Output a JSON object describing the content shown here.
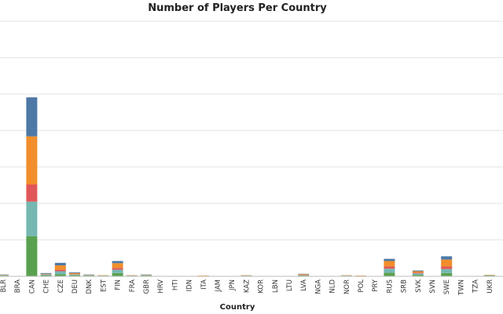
{
  "chart_data": {
    "type": "bar",
    "stacked": true,
    "title": "Number of Players Per Country",
    "xlabel": "Country",
    "ylabel": "",
    "grid": true,
    "ylim": [
      0,
      700
    ],
    "categories": [
      "BLR",
      "BRA",
      "CAN",
      "CHE",
      "CZE",
      "DEU",
      "DNK",
      "EST",
      "FIN",
      "FRA",
      "GBR",
      "HRV",
      "HTI",
      "IDN",
      "ITA",
      "JAM",
      "JPN",
      "KAZ",
      "KOR",
      "LBN",
      "LTU",
      "LVA",
      "NGA",
      "NLD",
      "NOR",
      "POL",
      "PRY",
      "RUS",
      "SRB",
      "SVK",
      "SVN",
      "SWE",
      "TWN",
      "TZA",
      "UKR"
    ],
    "series": [
      {
        "color": "#59a14f",
        "values": [
          2,
          0,
          110,
          3,
          6,
          3,
          2,
          1,
          9,
          1,
          2,
          0,
          0,
          0,
          1,
          0,
          0,
          1,
          0,
          0,
          0,
          2,
          0,
          0,
          1,
          1,
          0,
          10,
          0,
          4,
          0,
          9,
          0,
          0,
          2
        ]
      },
      {
        "color": "#76b7b2",
        "values": [
          1,
          0,
          95,
          2,
          8,
          2,
          1,
          1,
          9,
          1,
          1,
          0,
          0,
          0,
          0,
          0,
          0,
          1,
          0,
          0,
          1,
          1,
          0,
          0,
          1,
          0,
          0,
          11,
          0,
          4,
          0,
          11,
          0,
          0,
          1
        ]
      },
      {
        "color": "#e15759",
        "values": [
          0,
          0,
          47,
          1,
          4,
          1,
          0,
          0,
          5,
          0,
          0,
          0,
          0,
          0,
          0,
          0,
          0,
          0,
          0,
          0,
          0,
          1,
          0,
          0,
          0,
          0,
          0,
          6,
          0,
          2,
          0,
          7,
          0,
          0,
          0
        ]
      },
      {
        "color": "#f28e2b",
        "values": [
          1,
          1,
          132,
          1,
          12,
          3,
          1,
          1,
          13,
          1,
          1,
          0,
          0,
          0,
          1,
          0,
          0,
          1,
          0,
          0,
          0,
          2,
          0,
          0,
          1,
          1,
          0,
          15,
          0,
          4,
          0,
          19,
          0,
          0,
          1
        ]
      },
      {
        "color": "#4e79a7",
        "values": [
          1,
          0,
          107,
          2,
          7,
          2,
          1,
          0,
          6,
          0,
          1,
          0,
          0,
          0,
          0,
          0,
          0,
          0,
          0,
          0,
          0,
          1,
          0,
          0,
          0,
          0,
          0,
          6,
          0,
          2,
          0,
          9,
          0,
          0,
          0
        ]
      }
    ]
  }
}
